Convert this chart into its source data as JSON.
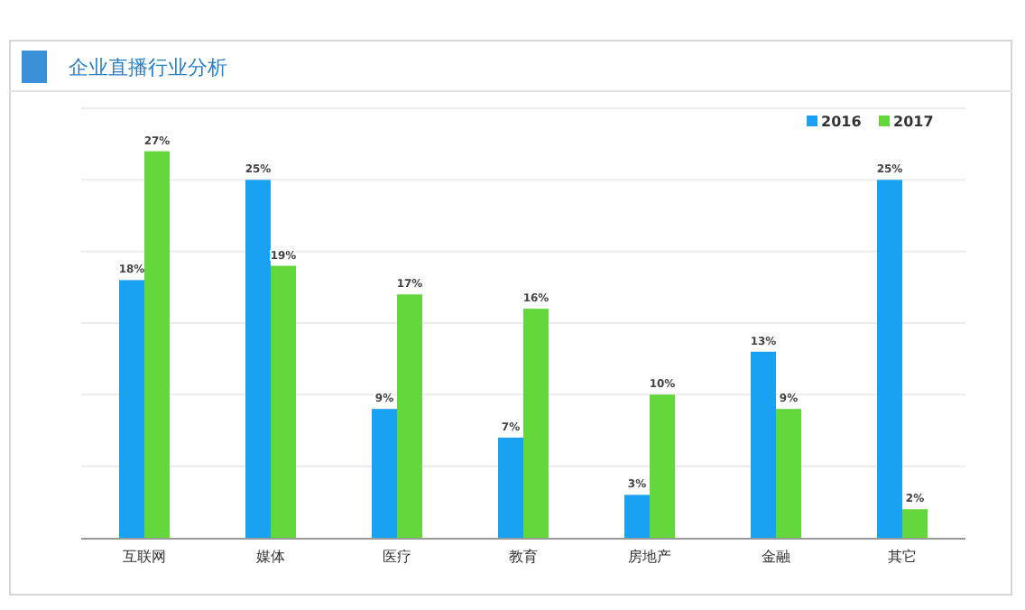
{
  "chart_data": {
    "type": "bar",
    "title": "企业直播行业分析",
    "categories": [
      "互联网",
      "媒体",
      "医疗",
      "教育",
      "房地产",
      "金融",
      "其它"
    ],
    "series": [
      {
        "name": "2016",
        "color": "#1ba1f2",
        "values": [
          18,
          25,
          9,
          7,
          3,
          13,
          25
        ],
        "value_labels": [
          "18%",
          "25%",
          "9%",
          "7%",
          "3%",
          "13%",
          "25%"
        ]
      },
      {
        "name": "2017",
        "color": "#62d63b",
        "values": [
          27,
          19,
          17,
          16,
          10,
          9,
          2
        ],
        "value_labels": [
          "27%",
          "19%",
          "17%",
          "16%",
          "10%",
          "9%",
          "2%"
        ]
      }
    ],
    "grid": "y",
    "legend": "top right"
  }
}
